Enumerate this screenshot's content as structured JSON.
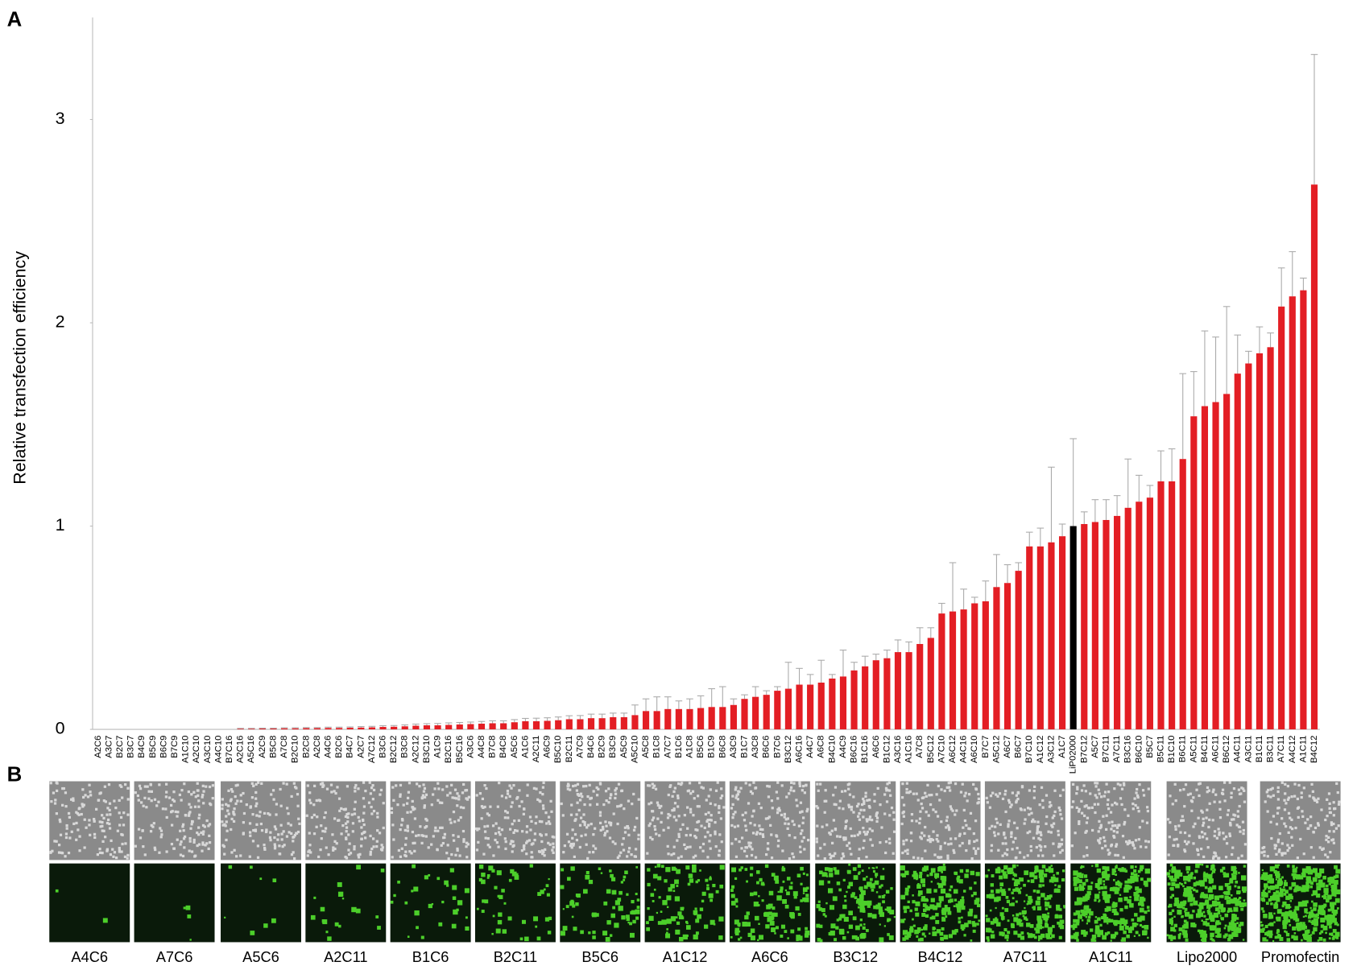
{
  "chart_data": {
    "type": "bar",
    "panel_label": "A",
    "y_label": "Relative transfection efficiency",
    "categories": [
      "A2C6",
      "A3C7",
      "B2C7",
      "B3C7",
      "B4C9",
      "B5C9",
      "B6C9",
      "B7C9",
      "A1C10",
      "A2C10",
      "A3C10",
      "A4C10",
      "B7C16",
      "A2C16",
      "A5C16",
      "A2C9",
      "B5C8",
      "A7C8",
      "B2C10",
      "B2C8",
      "A2C8",
      "A4C6",
      "B2C6",
      "B4C7",
      "A2C7",
      "A7C12",
      "B3C6",
      "B2C12",
      "B3C8",
      "A2C12",
      "B3C10",
      "A1C9",
      "B2C16",
      "B5C16",
      "A3C6",
      "A4C8",
      "B7C8",
      "B4C8",
      "A5C6",
      "A1C6",
      "A2C11",
      "A6C9",
      "B5C10",
      "B2C11",
      "A7C9",
      "B4C6",
      "B2C9",
      "B3C9",
      "A5C9",
      "A5C10",
      "A5C8",
      "B1C8",
      "A7C7",
      "B1C6",
      "A1C8",
      "B5C6",
      "B1C9",
      "B6C8",
      "A3C9",
      "B1C7",
      "A3C8",
      "B6C6",
      "B7C6",
      "B3C12",
      "A6C16",
      "A4C7",
      "A6C8",
      "B4C10",
      "A4C9",
      "B6C16",
      "B1C16",
      "A6C6",
      "B1C12",
      "A3C16",
      "A1C16",
      "A7C8",
      "B5C12",
      "A7C10",
      "A6C12",
      "A4C16",
      "A6C10",
      "B7C7",
      "A5C12",
      "A6C7",
      "B6C7",
      "B7C10",
      "A1C12",
      "A3C12",
      "A1C7",
      "LiP02000",
      "B7C12",
      "A5C7",
      "B7C11",
      "A7C11",
      "B3C16",
      "B6C10",
      "B5C7",
      "B5C11",
      "B1C10",
      "B6C11",
      "A5C11",
      "B4C11",
      "A6C11",
      "B6C12",
      "A4C11",
      "A3C11",
      "B1C11",
      "B3C11",
      "A7C11",
      "A4C12",
      "A1C11",
      "B4C12"
    ],
    "values": [
      0,
      0,
      0,
      0,
      0,
      0,
      0,
      0,
      0,
      0,
      0,
      0,
      0,
      0.003,
      0.003,
      0.004,
      0.004,
      0.005,
      0.005,
      0.006,
      0.006,
      0.007,
      0.007,
      0.008,
      0.009,
      0.01,
      0.012,
      0.013,
      0.015,
      0.018,
      0.02,
      0.02,
      0.022,
      0.024,
      0.026,
      0.028,
      0.03,
      0.03,
      0.035,
      0.04,
      0.04,
      0.042,
      0.045,
      0.05,
      0.05,
      0.055,
      0.055,
      0.06,
      0.06,
      0.07,
      0.09,
      0.09,
      0.1,
      0.1,
      0.1,
      0.105,
      0.11,
      0.11,
      0.12,
      0.15,
      0.16,
      0.17,
      0.19,
      0.2,
      0.22,
      0.22,
      0.23,
      0.25,
      0.26,
      0.29,
      0.31,
      0.34,
      0.35,
      0.38,
      0.38,
      0.42,
      0.45,
      0.57,
      0.58,
      0.59,
      0.62,
      0.63,
      0.7,
      0.72,
      0.78,
      0.9,
      0.9,
      0.92,
      0.95,
      1,
      1.01,
      1.02,
      1.03,
      1.05,
      1.09,
      1.12,
      1.14,
      1.22,
      1.22,
      1.33,
      1.54,
      1.59,
      1.61,
      1.65,
      1.75,
      1.8,
      1.85,
      1.88,
      2.08,
      2.13,
      2.16,
      2.68
    ],
    "errors": [
      0,
      0,
      0,
      0,
      0,
      0,
      0,
      0,
      0,
      0,
      0,
      0,
      0,
      0.002,
      0.002,
      0.002,
      0.002,
      0.003,
      0.003,
      0.003,
      0.003,
      0.004,
      0.004,
      0.004,
      0.005,
      0.005,
      0.006,
      0.006,
      0.007,
      0.008,
      0.008,
      0.009,
      0.01,
      0.01,
      0.01,
      0.011,
      0.012,
      0.012,
      0.013,
      0.014,
      0.015,
      0.015,
      0.016,
      0.017,
      0.018,
      0.02,
      0.02,
      0.02,
      0.02,
      0.05,
      0.06,
      0.07,
      0.06,
      0.04,
      0.05,
      0.06,
      0.09,
      0.1,
      0.03,
      0.02,
      0.05,
      0.02,
      0.02,
      0.13,
      0.08,
      0.05,
      0.11,
      0.02,
      0.13,
      0.04,
      0.05,
      0.03,
      0.04,
      0.06,
      0.05,
      0.08,
      0.05,
      0.05,
      0.24,
      0.1,
      0.03,
      0.1,
      0.16,
      0.09,
      0.04,
      0.07,
      0.09,
      0.37,
      0.06,
      0.43,
      0.06,
      0.11,
      0.1,
      0.1,
      0.24,
      0.13,
      0.06,
      0.15,
      0.16,
      0.42,
      0.22,
      0.37,
      0.32,
      0.43,
      0.19,
      0.06,
      0.13,
      0.07,
      0.19,
      0.22,
      0.06,
      0.64
    ],
    "color": "#e31e24",
    "error_color": "#aaaaaa",
    "highlight": {
      "category": "LiP02000",
      "color": "#000000"
    },
    "ylim": [
      0,
      3.5
    ],
    "yticks": [
      0,
      1,
      2,
      3
    ],
    "grid": false
  },
  "panel_b": {
    "panel_label": "B",
    "labels": [
      "A4C6",
      "A7C6",
      "A5C6",
      "A2C11",
      "B1C6",
      "B2C11",
      "B5C6",
      "A1C12",
      "A6C6",
      "B3C12",
      "B4C12",
      "A7C11",
      "A1C11",
      "Lipo2000",
      "Promofectin"
    ]
  }
}
